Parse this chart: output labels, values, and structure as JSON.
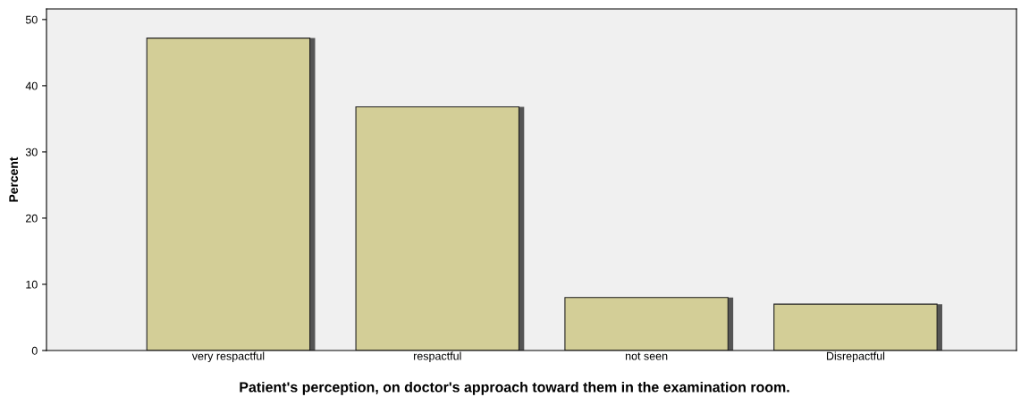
{
  "chart_data": {
    "type": "bar",
    "xlabel": "Patient's perception, on doctor's approach toward them in the examination room.",
    "ylabel": "Percent",
    "categories": [
      "very respactful",
      "respactful",
      "not seen",
      "Disrepactful"
    ],
    "values": [
      47.2,
      36.8,
      8.0,
      7.0
    ],
    "color": "#d3ce97",
    "ylim": [
      0,
      51.6
    ],
    "yticks": [
      0,
      10,
      20,
      30,
      40,
      50
    ],
    "grid": false,
    "legend": false
  }
}
